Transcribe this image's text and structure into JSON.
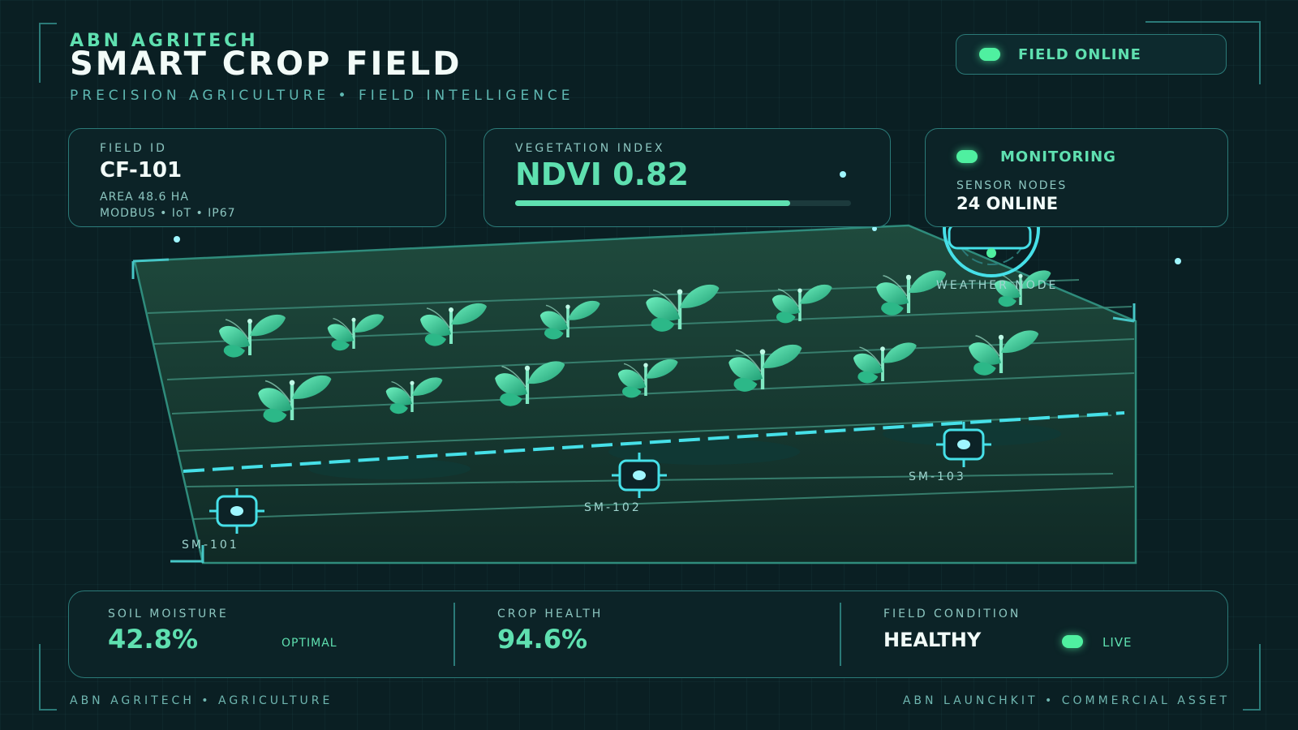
{
  "header": {
    "brand": "ABN AGRITECH",
    "title": "SMART CROP FIELD",
    "subtitle": "PRECISION AGRICULTURE • FIELD INTELLIGENCE"
  },
  "status_pill": {
    "label": "FIELD ONLINE",
    "color": "#4ff0a0"
  },
  "field_card": {
    "label": "FIELD ID",
    "id": "CF-101",
    "area": "AREA 48.6 HA",
    "protocols": "MODBUS • IoT • IP67"
  },
  "vegetation_card": {
    "label": "VEGETATION INDEX",
    "value": "NDVI 0.82",
    "progress": 0.82
  },
  "monitoring_card": {
    "status": "MONITORING",
    "label": "SENSOR NODES",
    "value": "24 ONLINE"
  },
  "weather_node": {
    "label": "WEATHER NODE"
  },
  "sensors": [
    {
      "label": "SM-101"
    },
    {
      "label": "SM-102"
    },
    {
      "label": "SM-103"
    }
  ],
  "bottom_panel": {
    "soil_moisture": {
      "label": "SOIL MOISTURE",
      "value": "42.8%",
      "status": "OPTIMAL"
    },
    "crop_health": {
      "label": "CROP HEALTH",
      "value": "94.6%"
    },
    "field_condition": {
      "label": "FIELD CONDITION",
      "value": "HEALTHY",
      "badge": "LIVE"
    }
  },
  "footer": {
    "left": "ABN AGRITECH • AGRICULTURE",
    "right": "ABN LAUNCHKIT • COMMERCIAL ASSET"
  },
  "colors": {
    "accent": "#5fe0b0",
    "border": "#2b7a78",
    "background": "#0a1f23",
    "cyan": "#46e0e8"
  },
  "icons": [
    "status-dot-icon",
    "plant-icon",
    "sensor-node-icon",
    "weather-node-icon"
  ]
}
